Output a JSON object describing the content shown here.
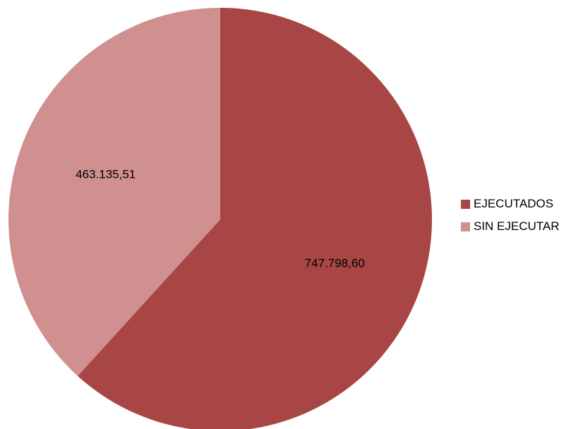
{
  "chart_data": {
    "type": "pie",
    "categories": [
      "EJECUTADOS",
      "SIN EJECUTAR"
    ],
    "values": [
      747798.6,
      463135.51
    ],
    "data_labels": [
      "747.798,60",
      "463.135,51"
    ],
    "colors": [
      "#A84646",
      "#D09090"
    ],
    "title": "",
    "legend_position": "right",
    "start_angle": "12 o'clock",
    "direction": "clockwise"
  },
  "legend": {
    "items": [
      {
        "label": "EJECUTADOS",
        "color": "#A84646"
      },
      {
        "label": "SIN EJECUTAR",
        "color": "#D09090"
      }
    ]
  }
}
